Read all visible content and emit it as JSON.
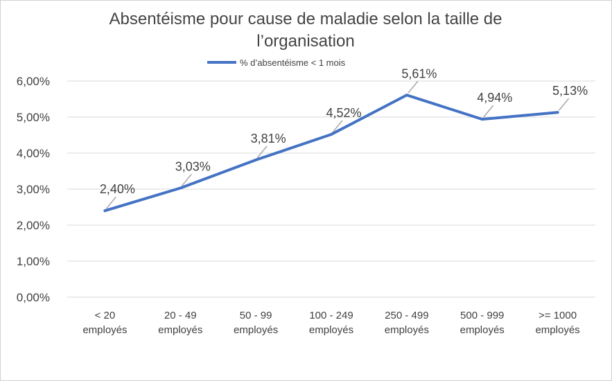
{
  "chart_data": {
    "type": "line",
    "title_line1": "Absentéisme pour cause de maladie selon la taille de",
    "title_line2": "l’organisation",
    "categories": [
      [
        "< 20",
        "employés"
      ],
      [
        "20 - 49",
        "employés"
      ],
      [
        "50 - 99",
        "employés"
      ],
      [
        "100 - 249",
        "employés"
      ],
      [
        "250 - 499",
        "employés"
      ],
      [
        "500 - 999",
        "employés"
      ],
      [
        ">= 1000",
        "employés"
      ]
    ],
    "series": [
      {
        "name": "% d’absentéisme < 1 mois",
        "values": [
          2.4,
          3.03,
          3.81,
          4.52,
          5.61,
          4.94,
          5.13
        ],
        "labels": [
          "2,40%",
          "3,03%",
          "3,81%",
          "4,52%",
          "5,61%",
          "4,94%",
          "5,13%"
        ],
        "color": "#4472c4"
      }
    ],
    "yticks": [
      "0,00%",
      "1,00%",
      "2,00%",
      "3,00%",
      "4,00%",
      "5,00%",
      "6,00%"
    ],
    "ylim": [
      0,
      6
    ],
    "grid": true,
    "legend": "top"
  }
}
